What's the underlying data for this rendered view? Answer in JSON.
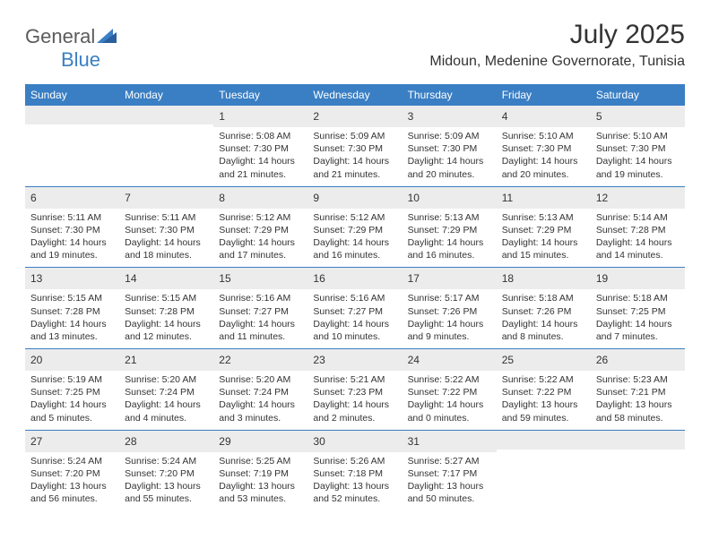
{
  "logo": {
    "text1": "General",
    "text2": "Blue"
  },
  "title": "July 2025",
  "location": "Midoun, Medenine Governorate, Tunisia",
  "colors": {
    "header_bg": "#3a7fc4",
    "header_text": "#ffffff",
    "daynum_bg": "#ececec",
    "border": "#3a7fc4",
    "text": "#333333",
    "logo_gray": "#5b5b5b",
    "logo_blue": "#3a7fc4"
  },
  "weekdays": [
    "Sunday",
    "Monday",
    "Tuesday",
    "Wednesday",
    "Thursday",
    "Friday",
    "Saturday"
  ],
  "first_weekday_index": 2,
  "days": [
    {
      "n": 1,
      "sunrise": "5:08 AM",
      "sunset": "7:30 PM",
      "daylight": "14 hours and 21 minutes."
    },
    {
      "n": 2,
      "sunrise": "5:09 AM",
      "sunset": "7:30 PM",
      "daylight": "14 hours and 21 minutes."
    },
    {
      "n": 3,
      "sunrise": "5:09 AM",
      "sunset": "7:30 PM",
      "daylight": "14 hours and 20 minutes."
    },
    {
      "n": 4,
      "sunrise": "5:10 AM",
      "sunset": "7:30 PM",
      "daylight": "14 hours and 20 minutes."
    },
    {
      "n": 5,
      "sunrise": "5:10 AM",
      "sunset": "7:30 PM",
      "daylight": "14 hours and 19 minutes."
    },
    {
      "n": 6,
      "sunrise": "5:11 AM",
      "sunset": "7:30 PM",
      "daylight": "14 hours and 19 minutes."
    },
    {
      "n": 7,
      "sunrise": "5:11 AM",
      "sunset": "7:30 PM",
      "daylight": "14 hours and 18 minutes."
    },
    {
      "n": 8,
      "sunrise": "5:12 AM",
      "sunset": "7:29 PM",
      "daylight": "14 hours and 17 minutes."
    },
    {
      "n": 9,
      "sunrise": "5:12 AM",
      "sunset": "7:29 PM",
      "daylight": "14 hours and 16 minutes."
    },
    {
      "n": 10,
      "sunrise": "5:13 AM",
      "sunset": "7:29 PM",
      "daylight": "14 hours and 16 minutes."
    },
    {
      "n": 11,
      "sunrise": "5:13 AM",
      "sunset": "7:29 PM",
      "daylight": "14 hours and 15 minutes."
    },
    {
      "n": 12,
      "sunrise": "5:14 AM",
      "sunset": "7:28 PM",
      "daylight": "14 hours and 14 minutes."
    },
    {
      "n": 13,
      "sunrise": "5:15 AM",
      "sunset": "7:28 PM",
      "daylight": "14 hours and 13 minutes."
    },
    {
      "n": 14,
      "sunrise": "5:15 AM",
      "sunset": "7:28 PM",
      "daylight": "14 hours and 12 minutes."
    },
    {
      "n": 15,
      "sunrise": "5:16 AM",
      "sunset": "7:27 PM",
      "daylight": "14 hours and 11 minutes."
    },
    {
      "n": 16,
      "sunrise": "5:16 AM",
      "sunset": "7:27 PM",
      "daylight": "14 hours and 10 minutes."
    },
    {
      "n": 17,
      "sunrise": "5:17 AM",
      "sunset": "7:26 PM",
      "daylight": "14 hours and 9 minutes."
    },
    {
      "n": 18,
      "sunrise": "5:18 AM",
      "sunset": "7:26 PM",
      "daylight": "14 hours and 8 minutes."
    },
    {
      "n": 19,
      "sunrise": "5:18 AM",
      "sunset": "7:25 PM",
      "daylight": "14 hours and 7 minutes."
    },
    {
      "n": 20,
      "sunrise": "5:19 AM",
      "sunset": "7:25 PM",
      "daylight": "14 hours and 5 minutes."
    },
    {
      "n": 21,
      "sunrise": "5:20 AM",
      "sunset": "7:24 PM",
      "daylight": "14 hours and 4 minutes."
    },
    {
      "n": 22,
      "sunrise": "5:20 AM",
      "sunset": "7:24 PM",
      "daylight": "14 hours and 3 minutes."
    },
    {
      "n": 23,
      "sunrise": "5:21 AM",
      "sunset": "7:23 PM",
      "daylight": "14 hours and 2 minutes."
    },
    {
      "n": 24,
      "sunrise": "5:22 AM",
      "sunset": "7:22 PM",
      "daylight": "14 hours and 0 minutes."
    },
    {
      "n": 25,
      "sunrise": "5:22 AM",
      "sunset": "7:22 PM",
      "daylight": "13 hours and 59 minutes."
    },
    {
      "n": 26,
      "sunrise": "5:23 AM",
      "sunset": "7:21 PM",
      "daylight": "13 hours and 58 minutes."
    },
    {
      "n": 27,
      "sunrise": "5:24 AM",
      "sunset": "7:20 PM",
      "daylight": "13 hours and 56 minutes."
    },
    {
      "n": 28,
      "sunrise": "5:24 AM",
      "sunset": "7:20 PM",
      "daylight": "13 hours and 55 minutes."
    },
    {
      "n": 29,
      "sunrise": "5:25 AM",
      "sunset": "7:19 PM",
      "daylight": "13 hours and 53 minutes."
    },
    {
      "n": 30,
      "sunrise": "5:26 AM",
      "sunset": "7:18 PM",
      "daylight": "13 hours and 52 minutes."
    },
    {
      "n": 31,
      "sunrise": "5:27 AM",
      "sunset": "7:17 PM",
      "daylight": "13 hours and 50 minutes."
    }
  ],
  "labels": {
    "sunrise": "Sunrise:",
    "sunset": "Sunset:",
    "daylight": "Daylight:"
  }
}
